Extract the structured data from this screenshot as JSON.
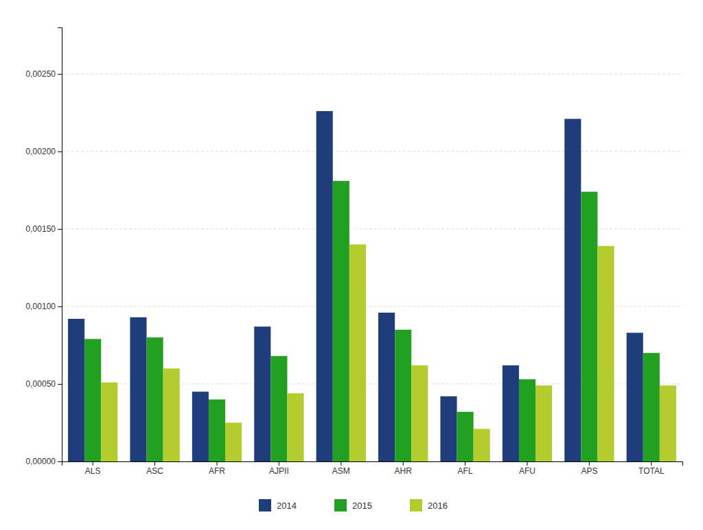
{
  "chart_data": {
    "type": "bar",
    "categories": [
      "ALS",
      "ASC",
      "AFR",
      "AJPII",
      "ASM",
      "AHR",
      "AFL",
      "AFU",
      "APS",
      "TOTAL"
    ],
    "series": [
      {
        "name": "2014",
        "color": "#1f3d7a",
        "values": [
          0.00092,
          0.00093,
          0.00045,
          0.00087,
          0.00226,
          0.00096,
          0.00042,
          0.00062,
          0.00221,
          0.00083
        ]
      },
      {
        "name": "2015",
        "color": "#22a022",
        "values": [
          0.00079,
          0.0008,
          0.0004,
          0.00068,
          0.00181,
          0.00085,
          0.00032,
          0.00053,
          0.00174,
          0.0007
        ]
      },
      {
        "name": "2016",
        "color": "#b5cc2e",
        "values": [
          0.00051,
          0.0006,
          0.00025,
          0.00044,
          0.0014,
          0.00062,
          0.00021,
          0.00049,
          0.00139,
          0.00049
        ]
      }
    ],
    "ylim": [
      0,
      0.0028
    ],
    "yticks": [
      {
        "value": 0.0,
        "label": "0,00000"
      },
      {
        "value": 0.0005,
        "label": "0,00050"
      },
      {
        "value": 0.001,
        "label": "0,00100"
      },
      {
        "value": 0.0015,
        "label": "0,00150"
      },
      {
        "value": 0.002,
        "label": "0,00200"
      },
      {
        "value": 0.0025,
        "label": "0,00250"
      }
    ],
    "grid": true,
    "legend": "bottom"
  }
}
